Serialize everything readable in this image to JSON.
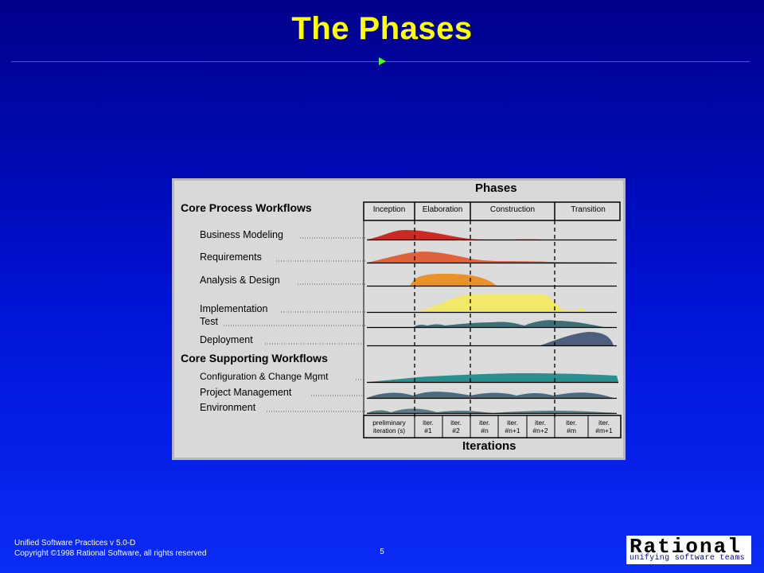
{
  "slide": {
    "title": "The Phases",
    "page_number": "5",
    "footer_line1": "Unified Software Practices v 5.0-D",
    "footer_line2": "Copyright ©1998 Rational Software, all rights reserved"
  },
  "logo": {
    "word": "Rational",
    "tagline": "unifying software teams"
  },
  "diagram": {
    "header": "Phases",
    "footer": "Iterations",
    "core_process_heading": "Core Process Workflows",
    "core_supporting_heading": "Core Supporting Workflows",
    "phases": [
      "Inception",
      "Elaboration",
      "Construction",
      "Transition"
    ],
    "workflows": {
      "business_modeling": "Business Modeling",
      "requirements": "Requirements",
      "analysis_design": "Analysis & Design",
      "implementation": "Implementation",
      "test": "Test",
      "deployment": "Deployment",
      "config_change": "Configuration & Change Mgmt",
      "project_management": "Project Management",
      "environment": "Environment"
    },
    "iterations": [
      {
        "line1": "preliminary",
        "line2": "iteration (s)"
      },
      {
        "line1": "iter.",
        "line2": "#1"
      },
      {
        "line1": "iter.",
        "line2": "#2"
      },
      {
        "line1": "iter.",
        "line2": "#n"
      },
      {
        "line1": "iter.",
        "line2": "#n+1"
      },
      {
        "line1": "iter.",
        "line2": "#n+2"
      },
      {
        "line1": "iter.",
        "line2": "#m"
      },
      {
        "line1": "iter.",
        "line2": "#m+1"
      }
    ],
    "colors": {
      "business_modeling": "#cc2a22",
      "requirements": "#e0623a",
      "analysis_design": "#e8922a",
      "implementation": "#f2e86a",
      "test": "#3e6f78",
      "deployment": "#4c5f7e",
      "config_change": "#2a8f8f",
      "project_management": "#4a6b7e",
      "environment": "#5a7a84"
    }
  }
}
